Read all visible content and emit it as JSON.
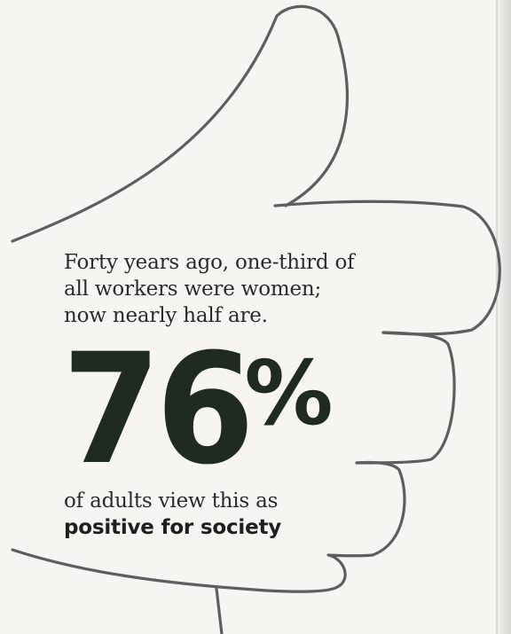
{
  "graphic": {
    "icon": "thumbs-up-icon",
    "intro_lines": [
      "Forty years ago, one-third of",
      "all workers were women;",
      "now nearly half are."
    ],
    "stat_number": "76",
    "stat_percent": "%",
    "caption_line_1": "of adults view this as",
    "caption_line_2": "positive for society"
  },
  "colors": {
    "outline": "#5a5a5a",
    "stat": "#1f2a22",
    "text": "#2b2b2b",
    "paper": "#f6f5f1"
  }
}
